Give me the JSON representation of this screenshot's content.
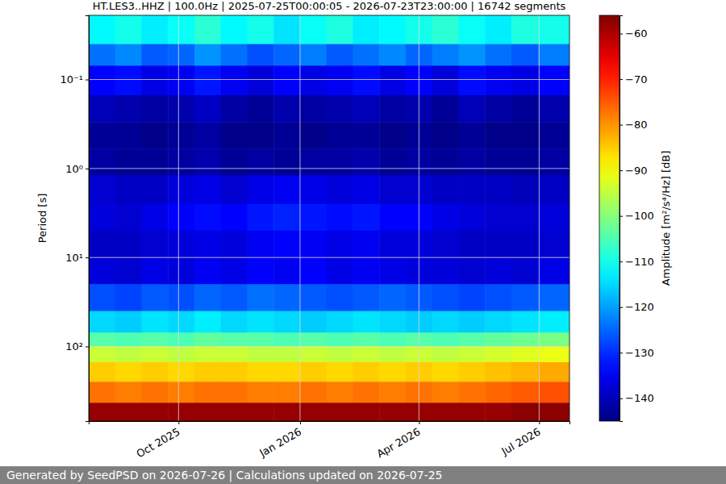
{
  "chart_data": {
    "type": "heatmap",
    "title": "HT.LES3..HHZ | 100.0Hz | 2025-07-25T00:00:05 - 2026-07-23T23:00:00 | 16742 segments",
    "y_label": "Period [s]",
    "log": "y",
    "grid": true,
    "xlim": [
      "2025-07-25",
      "2026-07-24"
    ],
    "xticks": [
      {
        "value": "2025-10-01",
        "label": "Oct 2025"
      },
      {
        "value": "2026-01-01",
        "label": "Jan 2026"
      },
      {
        "value": "2026-04-01",
        "label": "Apr 2026"
      },
      {
        "value": "2026-07-01",
        "label": "Jul 2026"
      }
    ],
    "ylim": [
      0.019,
      690
    ],
    "yticks": [
      {
        "value": 0.1,
        "label": "10⁻¹"
      },
      {
        "value": 1,
        "label": "10⁰"
      },
      {
        "value": 10,
        "label": "10¹"
      },
      {
        "value": 100,
        "label": "10²"
      }
    ],
    "x_bins": [
      "2025-07-25",
      "2025-08-14",
      "2025-09-03",
      "2025-09-23",
      "2025-10-13",
      "2025-11-02",
      "2025-11-22",
      "2025-12-12",
      "2026-01-01",
      "2026-01-21",
      "2026-02-10",
      "2026-03-02",
      "2026-03-22",
      "2026-04-11",
      "2026-05-01",
      "2026-05-21",
      "2026-06-10",
      "2026-06-30",
      "2026-07-24"
    ],
    "y_bins": [
      0.019,
      0.04,
      0.07,
      0.15,
      0.3,
      0.6,
      1.2,
      2.5,
      5,
      10,
      20,
      40,
      70,
      100,
      150,
      250,
      430,
      690
    ],
    "values": [
      [
        -112,
        -110,
        -113,
        -111,
        -108,
        -112,
        -110,
        -114,
        -111,
        -109,
        -113,
        -112,
        -110,
        -108,
        -111,
        -113,
        -109,
        -110
      ],
      [
        -124,
        -122,
        -126,
        -125,
        -121,
        -124,
        -127,
        -125,
        -123,
        -126,
        -124,
        -122,
        -125,
        -123,
        -121,
        -124,
        -126,
        -123
      ],
      [
        -134,
        -133,
        -136,
        -135,
        -132,
        -135,
        -137,
        -134,
        -136,
        -135,
        -133,
        -136,
        -134,
        -137,
        -133,
        -135,
        -136,
        -134
      ],
      [
        -140,
        -141,
        -142,
        -141,
        -139,
        -142,
        -143,
        -141,
        -142,
        -141,
        -140,
        -142,
        -141,
        -143,
        -140,
        -142,
        -143,
        -141
      ],
      [
        -143,
        -143,
        -144,
        -143,
        -142,
        -144,
        -144,
        -143,
        -144,
        -143,
        -143,
        -144,
        -143,
        -144,
        -143,
        -144,
        -144,
        -143
      ],
      [
        -142,
        -143,
        -143,
        -142,
        -141,
        -143,
        -142,
        -143,
        -142,
        -142,
        -141,
        -143,
        -142,
        -143,
        -142,
        -143,
        -143,
        -142
      ],
      [
        -138,
        -139,
        -139,
        -137,
        -136,
        -138,
        -136,
        -135,
        -136,
        -137,
        -136,
        -138,
        -138,
        -139,
        -139,
        -139,
        -140,
        -139
      ],
      [
        -137,
        -138,
        -136,
        -134,
        -133,
        -134,
        -132,
        -131,
        -132,
        -133,
        -132,
        -134,
        -134,
        -136,
        -137,
        -138,
        -138,
        -137
      ],
      [
        -139,
        -139,
        -138,
        -137,
        -136,
        -137,
        -135,
        -134,
        -135,
        -136,
        -135,
        -137,
        -137,
        -138,
        -139,
        -139,
        -139,
        -138
      ],
      [
        -137,
        -138,
        -136,
        -137,
        -135,
        -136,
        -134,
        -135,
        -134,
        -136,
        -135,
        -136,
        -137,
        -137,
        -138,
        -137,
        -138,
        -136
      ],
      [
        -127,
        -128,
        -126,
        -127,
        -125,
        -126,
        -124,
        -125,
        -126,
        -127,
        -126,
        -125,
        -126,
        -127,
        -128,
        -127,
        -126,
        -125
      ],
      [
        -115,
        -116,
        -114,
        -115,
        -113,
        -115,
        -114,
        -115,
        -116,
        -115,
        -114,
        -115,
        -116,
        -115,
        -116,
        -115,
        -114,
        -113
      ],
      [
        -104,
        -105,
        -104,
        -105,
        -103,
        -104,
        -104,
        -105,
        -104,
        -105,
        -104,
        -105,
        -104,
        -105,
        -104,
        -103,
        -102,
        -101
      ],
      [
        -94,
        -95,
        -94,
        -95,
        -94,
        -94,
        -95,
        -95,
        -94,
        -95,
        -94,
        -95,
        -94,
        -95,
        -94,
        -93,
        -92,
        -91
      ],
      [
        -85,
        -86,
        -85,
        -86,
        -85,
        -85,
        -86,
        -86,
        -85,
        -86,
        -85,
        -86,
        -85,
        -86,
        -85,
        -84,
        -83,
        -82
      ],
      [
        -77,
        -78,
        -77,
        -78,
        -77,
        -77,
        -78,
        -78,
        -77,
        -78,
        -77,
        -78,
        -77,
        -78,
        -77,
        -76,
        -75,
        -74
      ],
      [
        -58,
        -58,
        -58,
        -58,
        -58,
        -58,
        -58,
        -58,
        -58,
        -58,
        -58,
        -58,
        -58,
        -58,
        -58,
        -58,
        -57,
        -57
      ]
    ],
    "colorbar": {
      "label": "Amplitude [m²/s⁴/Hz] [dB]",
      "range": [
        -145,
        -56
      ],
      "ticks": [
        {
          "value": -60,
          "label": "−60"
        },
        {
          "value": -70,
          "label": "−70"
        },
        {
          "value": -80,
          "label": "−80"
        },
        {
          "value": -90,
          "label": "−90"
        },
        {
          "value": -100,
          "label": "−100"
        },
        {
          "value": -110,
          "label": "−110"
        },
        {
          "value": -120,
          "label": "−120"
        },
        {
          "value": -130,
          "label": "−130"
        },
        {
          "value": -140,
          "label": "−140"
        }
      ]
    }
  },
  "footer": "Generated by SeedPSD on 2026-07-26 | Calculations updated on 2026-07-25"
}
